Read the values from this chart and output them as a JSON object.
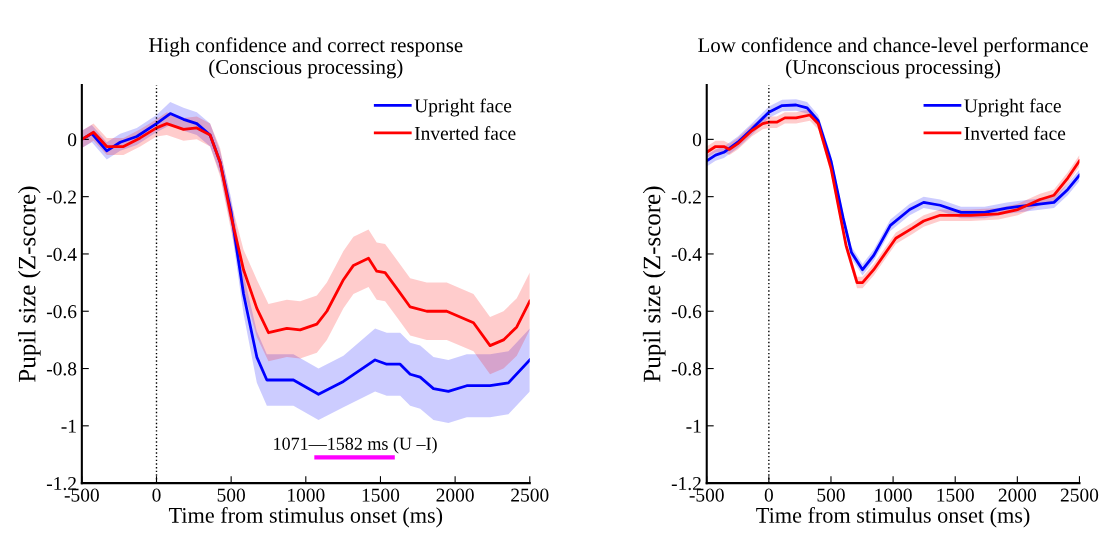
{
  "chart_data": [
    {
      "type": "line",
      "title": "High confidence and correct response",
      "subtitle": "(Conscious processing)",
      "xlabel": "Time from stimulus onset (ms)",
      "ylabel": "Pupil size (Z-score)",
      "xlim": [
        -500,
        2500
      ],
      "xticks": [
        -500,
        0,
        500,
        1000,
        1500,
        2000,
        2500
      ],
      "ylim": [
        -1.2,
        0.19
      ],
      "yticks": [
        -1.2,
        -1,
        -0.8,
        -0.6,
        -0.4,
        -0.2,
        0
      ],
      "legend": "top right",
      "grid": false,
      "ref_lines": [
        {
          "axis": "x",
          "value": 0,
          "color": "#000000",
          "line_style": "dotted"
        }
      ],
      "annotations": [
        "1071—1582 ms (U –I)"
      ],
      "series": [
        {
          "name": "Upright face",
          "color": "#0000ff",
          "x": [
            -500,
            -433,
            -333,
            -243,
            -132,
            0,
            92,
            181,
            270,
            359,
            426,
            500,
            583,
            672,
            739,
            917,
            1085,
            1252,
            1464,
            1542,
            1632,
            1699,
            1766,
            1855,
            1955,
            2078,
            2234,
            2357,
            2500
          ],
          "values": [
            0,
            0.02,
            -0.04,
            -0.01,
            0.01,
            0.055,
            0.09,
            0.07,
            0.055,
            0.015,
            -0.08,
            -0.255,
            -0.54,
            -0.76,
            -0.84,
            -0.84,
            -0.89,
            -0.845,
            -0.77,
            -0.785,
            -0.785,
            -0.82,
            -0.83,
            -0.87,
            -0.88,
            -0.86,
            -0.86,
            -0.85,
            -0.77
          ],
          "lower": [
            -0.03,
            -0.01,
            -0.07,
            -0.04,
            -0.02,
            0.025,
            0.05,
            0.03,
            0.015,
            -0.025,
            -0.12,
            -0.305,
            -0.61,
            -0.85,
            -0.93,
            -0.93,
            -0.98,
            -0.935,
            -0.88,
            -0.895,
            -0.895,
            -0.93,
            -0.94,
            -0.98,
            -0.99,
            -0.97,
            -0.97,
            -0.96,
            -0.88
          ],
          "upper": [
            0.03,
            0.05,
            -0.01,
            0.02,
            0.04,
            0.085,
            0.13,
            0.11,
            0.095,
            0.055,
            -0.04,
            -0.205,
            -0.47,
            -0.67,
            -0.75,
            -0.75,
            -0.8,
            -0.755,
            -0.66,
            -0.675,
            -0.675,
            -0.71,
            -0.72,
            -0.76,
            -0.77,
            -0.75,
            -0.75,
            -0.74,
            -0.66
          ]
        },
        {
          "name": "Inverted face",
          "color": "#ff0000",
          "x": [
            -500,
            -422,
            -333,
            -221,
            -109,
            0,
            69,
            181,
            270,
            359,
            426,
            500,
            583,
            672,
            750,
            873,
            962,
            1074,
            1141,
            1252,
            1319,
            1420,
            1475,
            1531,
            1609,
            1699,
            1810,
            1944,
            2123,
            2234,
            2324,
            2413,
            2500
          ],
          "values": [
            0,
            0.025,
            -0.025,
            -0.025,
            0.005,
            0.04,
            0.055,
            0.035,
            0.04,
            0.015,
            -0.08,
            -0.27,
            -0.455,
            -0.59,
            -0.675,
            -0.66,
            -0.665,
            -0.645,
            -0.6,
            -0.49,
            -0.44,
            -0.415,
            -0.46,
            -0.465,
            -0.52,
            -0.585,
            -0.6,
            -0.6,
            -0.64,
            -0.72,
            -0.7,
            -0.655,
            -0.565
          ],
          "lower": [
            -0.03,
            -0.005,
            -0.055,
            -0.055,
            -0.025,
            0.01,
            0.015,
            -0.005,
            0,
            -0.025,
            -0.13,
            -0.32,
            -0.525,
            -0.69,
            -0.775,
            -0.76,
            -0.765,
            -0.745,
            -0.7,
            -0.59,
            -0.54,
            -0.515,
            -0.56,
            -0.565,
            -0.62,
            -0.685,
            -0.7,
            -0.7,
            -0.74,
            -0.82,
            -0.8,
            -0.755,
            -0.665
          ],
          "upper": [
            0.03,
            0.055,
            0.005,
            0.005,
            0.035,
            0.07,
            0.095,
            0.075,
            0.08,
            0.055,
            -0.03,
            -0.22,
            -0.385,
            -0.49,
            -0.575,
            -0.56,
            -0.565,
            -0.545,
            -0.5,
            -0.39,
            -0.34,
            -0.315,
            -0.36,
            -0.365,
            -0.42,
            -0.485,
            -0.5,
            -0.5,
            -0.54,
            -0.62,
            -0.6,
            -0.555,
            -0.465
          ]
        },
        {
          "color": "#ff00ff",
          "x": [
            1071,
            1582
          ],
          "values": [
            -1.11,
            -1.11
          ]
        }
      ]
    },
    {
      "type": "line",
      "title": "Low confidence and chance-level performance",
      "subtitle": "(Unconscious processing)",
      "xlabel": "Time from stimulus onset (ms)",
      "ylabel": "Pupil size (Z-score)",
      "xlim": [
        -500,
        2500
      ],
      "xticks": [
        -500,
        0,
        500,
        1000,
        1500,
        2000,
        2500
      ],
      "ylim": [
        -1.2,
        0.19
      ],
      "yticks": [
        -1.2,
        -1,
        -0.8,
        -0.6,
        -0.4,
        -0.2,
        0
      ],
      "legend": "top right",
      "grid": false,
      "ref_lines": [
        {
          "axis": "x",
          "value": 0,
          "color": "#000000",
          "line_style": "dotted"
        }
      ],
      "series": [
        {
          "name": "Upright face",
          "color": "#0000ff",
          "x": [
            -500,
            -429,
            -362,
            -250,
            -138,
            0,
            107,
            219,
            308,
            397,
            500,
            598,
            665,
            754,
            844,
            978,
            1134,
            1246,
            1379,
            1547,
            1737,
            1915,
            2004,
            2295,
            2406,
            2500
          ],
          "values": [
            -0.075,
            -0.055,
            -0.045,
            -0.01,
            0.035,
            0.095,
            0.118,
            0.12,
            0.11,
            0.065,
            -0.075,
            -0.275,
            -0.395,
            -0.455,
            -0.405,
            -0.3,
            -0.245,
            -0.22,
            -0.23,
            -0.255,
            -0.255,
            -0.24,
            -0.235,
            -0.22,
            -0.175,
            -0.125
          ],
          "lower": [
            -0.095,
            -0.075,
            -0.065,
            -0.03,
            0.015,
            0.075,
            0.098,
            0.1,
            0.09,
            0.045,
            -0.095,
            -0.295,
            -0.415,
            -0.475,
            -0.425,
            -0.32,
            -0.265,
            -0.24,
            -0.25,
            -0.275,
            -0.275,
            -0.26,
            -0.255,
            -0.24,
            -0.195,
            -0.145
          ],
          "upper": [
            -0.055,
            -0.035,
            -0.025,
            0.01,
            0.055,
            0.115,
            0.138,
            0.14,
            0.13,
            0.085,
            -0.055,
            -0.255,
            -0.375,
            -0.435,
            -0.385,
            -0.28,
            -0.225,
            -0.2,
            -0.21,
            -0.235,
            -0.235,
            -0.22,
            -0.215,
            -0.2,
            -0.155,
            -0.105
          ]
        },
        {
          "name": "Inverted face",
          "color": "#ff0000",
          "x": [
            -500,
            -429,
            -362,
            -317,
            -250,
            -138,
            -49,
            0,
            63,
            129,
            219,
            330,
            397,
            500,
            621,
            710,
            754,
            844,
            1022,
            1156,
            1246,
            1379,
            1625,
            1848,
            2004,
            2183,
            2295,
            2406,
            2500
          ],
          "values": [
            -0.045,
            -0.025,
            -0.025,
            -0.035,
            -0.015,
            0.03,
            0.055,
            0.06,
            0.06,
            0.075,
            0.075,
            0.085,
            0.055,
            -0.1,
            -0.37,
            -0.5,
            -0.5,
            -0.455,
            -0.345,
            -0.31,
            -0.285,
            -0.265,
            -0.265,
            -0.26,
            -0.245,
            -0.21,
            -0.195,
            -0.135,
            -0.075
          ],
          "lower": [
            -0.065,
            -0.045,
            -0.045,
            -0.055,
            -0.035,
            0.01,
            0.035,
            0.04,
            0.04,
            0.055,
            0.055,
            0.065,
            0.035,
            -0.12,
            -0.39,
            -0.52,
            -0.52,
            -0.475,
            -0.365,
            -0.33,
            -0.305,
            -0.285,
            -0.285,
            -0.28,
            -0.265,
            -0.23,
            -0.215,
            -0.155,
            -0.095
          ],
          "upper": [
            -0.025,
            -0.005,
            -0.005,
            -0.015,
            0.005,
            0.05,
            0.075,
            0.08,
            0.08,
            0.095,
            0.095,
            0.105,
            0.075,
            -0.08,
            -0.35,
            -0.48,
            -0.48,
            -0.435,
            -0.325,
            -0.29,
            -0.265,
            -0.245,
            -0.245,
            -0.24,
            -0.225,
            -0.19,
            -0.175,
            -0.115,
            -0.055
          ]
        }
      ]
    }
  ]
}
